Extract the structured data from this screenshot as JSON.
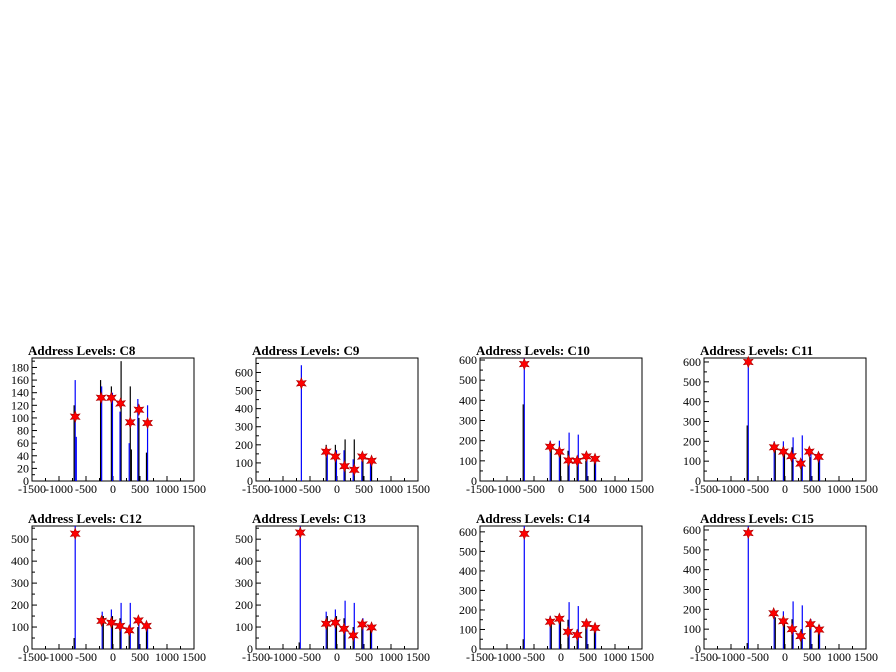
{
  "chart_data": [
    {
      "type": "bar",
      "title": "Address Levels: C8",
      "xlim": [
        -1500,
        1500
      ],
      "ylim": [
        0,
        195
      ],
      "yticks": [
        0,
        20,
        40,
        60,
        80,
        100,
        120,
        140,
        160,
        180
      ],
      "xticks": [
        -1500,
        -1000,
        -500,
        0,
        500,
        1000,
        1500
      ],
      "spikes": [
        [
          -700,
          160
        ],
        [
          -720,
          120
        ],
        [
          -680,
          70
        ],
        [
          -230,
          160
        ],
        [
          -210,
          150
        ],
        [
          -30,
          150
        ],
        [
          -10,
          140
        ],
        [
          150,
          190
        ],
        [
          130,
          110
        ],
        [
          320,
          150
        ],
        [
          300,
          60
        ],
        [
          340,
          50
        ],
        [
          460,
          130
        ],
        [
          480,
          100
        ],
        [
          640,
          120
        ],
        [
          620,
          45
        ]
      ],
      "peaks": [
        [
          -700,
          102
        ],
        [
          -220,
          132
        ],
        [
          -30,
          132
        ],
        [
          140,
          123
        ],
        [
          320,
          93
        ],
        [
          480,
          113
        ],
        [
          640,
          92
        ]
      ]
    },
    {
      "type": "bar",
      "title": "Address Levels: C9",
      "xlim": [
        -1500,
        1500
      ],
      "ylim": [
        0,
        680
      ],
      "yticks": [
        0,
        100,
        200,
        300,
        400,
        500,
        600
      ],
      "xticks": [
        -1500,
        -1000,
        -500,
        0,
        500,
        1000,
        1500
      ],
      "spikes": [
        [
          -660,
          640
        ],
        [
          -200,
          200
        ],
        [
          -180,
          170
        ],
        [
          -30,
          200
        ],
        [
          -10,
          170
        ],
        [
          150,
          230
        ],
        [
          130,
          170
        ],
        [
          320,
          230
        ],
        [
          300,
          120
        ],
        [
          480,
          150
        ],
        [
          460,
          110
        ],
        [
          640,
          130
        ],
        [
          620,
          100
        ]
      ],
      "peaks": [
        [
          -660,
          540
        ],
        [
          -200,
          162
        ],
        [
          -30,
          135
        ],
        [
          140,
          82
        ],
        [
          320,
          62
        ],
        [
          470,
          135
        ],
        [
          640,
          112
        ]
      ]
    },
    {
      "type": "bar",
      "title": "Address Levels: C10",
      "xlim": [
        -1500,
        1500
      ],
      "ylim": [
        0,
        610
      ],
      "yticks": [
        0,
        100,
        200,
        300,
        400,
        500,
        600
      ],
      "xticks": [
        -1500,
        -1000,
        -500,
        0,
        500,
        1000,
        1500
      ],
      "spikes": [
        [
          -680,
          610
        ],
        [
          -700,
          380
        ],
        [
          -200,
          200
        ],
        [
          -180,
          160
        ],
        [
          -30,
          200
        ],
        [
          -10,
          150
        ],
        [
          150,
          240
        ],
        [
          130,
          150
        ],
        [
          320,
          230
        ],
        [
          300,
          110
        ],
        [
          480,
          140
        ],
        [
          460,
          100
        ],
        [
          640,
          120
        ],
        [
          620,
          100
        ]
      ],
      "peaks": [
        [
          -680,
          580
        ],
        [
          -200,
          170
        ],
        [
          -30,
          145
        ],
        [
          140,
          102
        ],
        [
          300,
          100
        ],
        [
          470,
          122
        ],
        [
          630,
          110
        ]
      ]
    },
    {
      "type": "bar",
      "title": "Address Levels: C11",
      "xlim": [
        -1500,
        1500
      ],
      "ylim": [
        0,
        620
      ],
      "yticks": [
        0,
        100,
        200,
        300,
        400,
        500,
        600
      ],
      "xticks": [
        -1500,
        -1000,
        -500,
        0,
        500,
        1000,
        1500
      ],
      "spikes": [
        [
          -680,
          620
        ],
        [
          -700,
          280
        ],
        [
          -200,
          200
        ],
        [
          -180,
          170
        ],
        [
          -30,
          200
        ],
        [
          -10,
          160
        ],
        [
          150,
          220
        ],
        [
          130,
          170
        ],
        [
          320,
          230
        ],
        [
          300,
          110
        ],
        [
          480,
          160
        ],
        [
          460,
          120
        ],
        [
          640,
          140
        ],
        [
          620,
          110
        ]
      ],
      "peaks": [
        [
          -680,
          600
        ],
        [
          -200,
          170
        ],
        [
          -30,
          148
        ],
        [
          120,
          125
        ],
        [
          290,
          88
        ],
        [
          450,
          148
        ],
        [
          620,
          122
        ]
      ]
    },
    {
      "type": "bar",
      "title": "Address Levels: C12",
      "xlim": [
        -1500,
        1500
      ],
      "ylim": [
        0,
        560
      ],
      "yticks": [
        0,
        100,
        200,
        300,
        400,
        500
      ],
      "xticks": [
        -1500,
        -1000,
        -500,
        0,
        500,
        1000,
        1500
      ],
      "spikes": [
        [
          -700,
          560
        ],
        [
          -720,
          50
        ],
        [
          -200,
          170
        ],
        [
          -180,
          150
        ],
        [
          -30,
          180
        ],
        [
          -10,
          150
        ],
        [
          150,
          210
        ],
        [
          130,
          140
        ],
        [
          320,
          210
        ],
        [
          300,
          100
        ],
        [
          480,
          140
        ],
        [
          460,
          100
        ],
        [
          640,
          110
        ],
        [
          620,
          90
        ]
      ],
      "peaks": [
        [
          -700,
          525
        ],
        [
          -210,
          128
        ],
        [
          -30,
          120
        ],
        [
          130,
          105
        ],
        [
          300,
          85
        ],
        [
          470,
          130
        ],
        [
          620,
          105
        ]
      ]
    },
    {
      "type": "bar",
      "title": "Address Levels: C13",
      "xlim": [
        -1500,
        1500
      ],
      "ylim": [
        0,
        560
      ],
      "yticks": [
        0,
        100,
        200,
        300,
        400,
        500
      ],
      "xticks": [
        -1500,
        -1000,
        -500,
        0,
        500,
        1000,
        1500
      ],
      "spikes": [
        [
          -680,
          560
        ],
        [
          -700,
          30
        ],
        [
          -200,
          170
        ],
        [
          -180,
          150
        ],
        [
          -30,
          180
        ],
        [
          -10,
          150
        ],
        [
          150,
          220
        ],
        [
          130,
          140
        ],
        [
          320,
          210
        ],
        [
          300,
          100
        ],
        [
          480,
          140
        ],
        [
          460,
          100
        ],
        [
          640,
          110
        ],
        [
          620,
          90
        ]
      ],
      "peaks": [
        [
          -680,
          530
        ],
        [
          -200,
          115
        ],
        [
          -30,
          120
        ],
        [
          130,
          92
        ],
        [
          300,
          62
        ],
        [
          470,
          112
        ],
        [
          640,
          98
        ]
      ]
    },
    {
      "type": "bar",
      "title": "Address Levels: C14",
      "xlim": [
        -1500,
        1500
      ],
      "ylim": [
        0,
        630
      ],
      "yticks": [
        0,
        100,
        200,
        300,
        400,
        500,
        600
      ],
      "xticks": [
        -1500,
        -1000,
        -500,
        0,
        500,
        1000,
        1500
      ],
      "spikes": [
        [
          -680,
          630
        ],
        [
          -700,
          50
        ],
        [
          -200,
          170
        ],
        [
          -180,
          150
        ],
        [
          -30,
          180
        ],
        [
          -10,
          150
        ],
        [
          150,
          240
        ],
        [
          130,
          150
        ],
        [
          320,
          220
        ],
        [
          300,
          100
        ],
        [
          480,
          150
        ],
        [
          460,
          110
        ],
        [
          640,
          120
        ],
        [
          620,
          95
        ]
      ],
      "peaks": [
        [
          -680,
          590
        ],
        [
          -200,
          140
        ],
        [
          -30,
          155
        ],
        [
          130,
          88
        ],
        [
          300,
          72
        ],
        [
          470,
          128
        ],
        [
          630,
          108
        ]
      ]
    },
    {
      "type": "bar",
      "title": "Address Levels: C15",
      "xlim": [
        -1500,
        1500
      ],
      "ylim": [
        0,
        620
      ],
      "yticks": [
        0,
        100,
        200,
        300,
        400,
        500,
        600
      ],
      "xticks": [
        -1500,
        -1000,
        -500,
        0,
        500,
        1000,
        1500
      ],
      "spikes": [
        [
          -680,
          620
        ],
        [
          -700,
          30
        ],
        [
          -200,
          190
        ],
        [
          -180,
          160
        ],
        [
          -30,
          190
        ],
        [
          -10,
          150
        ],
        [
          150,
          240
        ],
        [
          130,
          150
        ],
        [
          320,
          220
        ],
        [
          300,
          100
        ],
        [
          480,
          150
        ],
        [
          460,
          110
        ],
        [
          640,
          120
        ],
        [
          620,
          90
        ]
      ],
      "peaks": [
        [
          -680,
          585
        ],
        [
          -210,
          180
        ],
        [
          -30,
          140
        ],
        [
          130,
          100
        ],
        [
          290,
          65
        ],
        [
          470,
          125
        ],
        [
          630,
          98
        ]
      ]
    }
  ],
  "colors": {
    "histogram": "#0000ff",
    "histogram_dark": "#000000",
    "marker": "#ff0000",
    "axis": "#000000"
  }
}
